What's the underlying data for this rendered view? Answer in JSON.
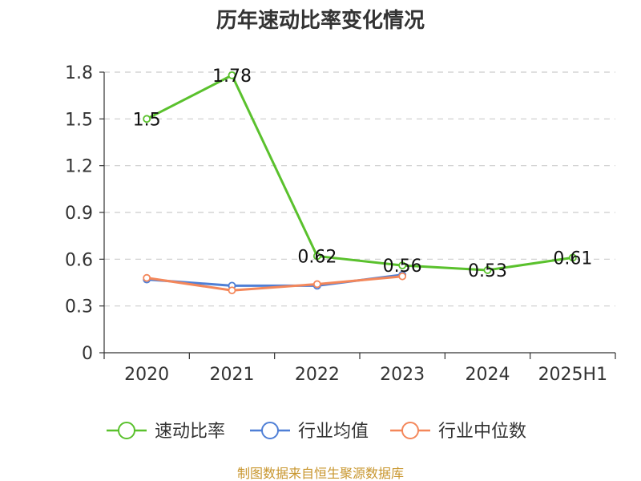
{
  "chart_data": {
    "type": "line",
    "title": "历年速动比率变化情况",
    "categories": [
      "2020",
      "2021",
      "2022",
      "2023",
      "2024",
      "2025H1"
    ],
    "ylim": [
      0,
      1.8
    ],
    "yticks": [
      "0",
      "0.3",
      "0.6",
      "0.9",
      "1.2",
      "1.5",
      "1.8"
    ],
    "grid": true,
    "legend_position": "bottom",
    "series": [
      {
        "name": "速动比率",
        "color": "#5ac12d",
        "values": [
          1.5,
          1.78,
          0.62,
          0.56,
          0.53,
          0.61
        ],
        "labels": [
          "1.5",
          "1.78",
          "0.62",
          "0.56",
          "0.53",
          "0.61"
        ]
      },
      {
        "name": "行业均值",
        "color": "#4f7fd6",
        "values": [
          0.47,
          0.43,
          0.43,
          0.5,
          null,
          null
        ]
      },
      {
        "name": "行业中位数",
        "color": "#f4875a",
        "values": [
          0.48,
          0.4,
          0.44,
          0.49,
          null,
          null
        ]
      }
    ],
    "source": "制图数据来自恒生聚源数据库"
  }
}
